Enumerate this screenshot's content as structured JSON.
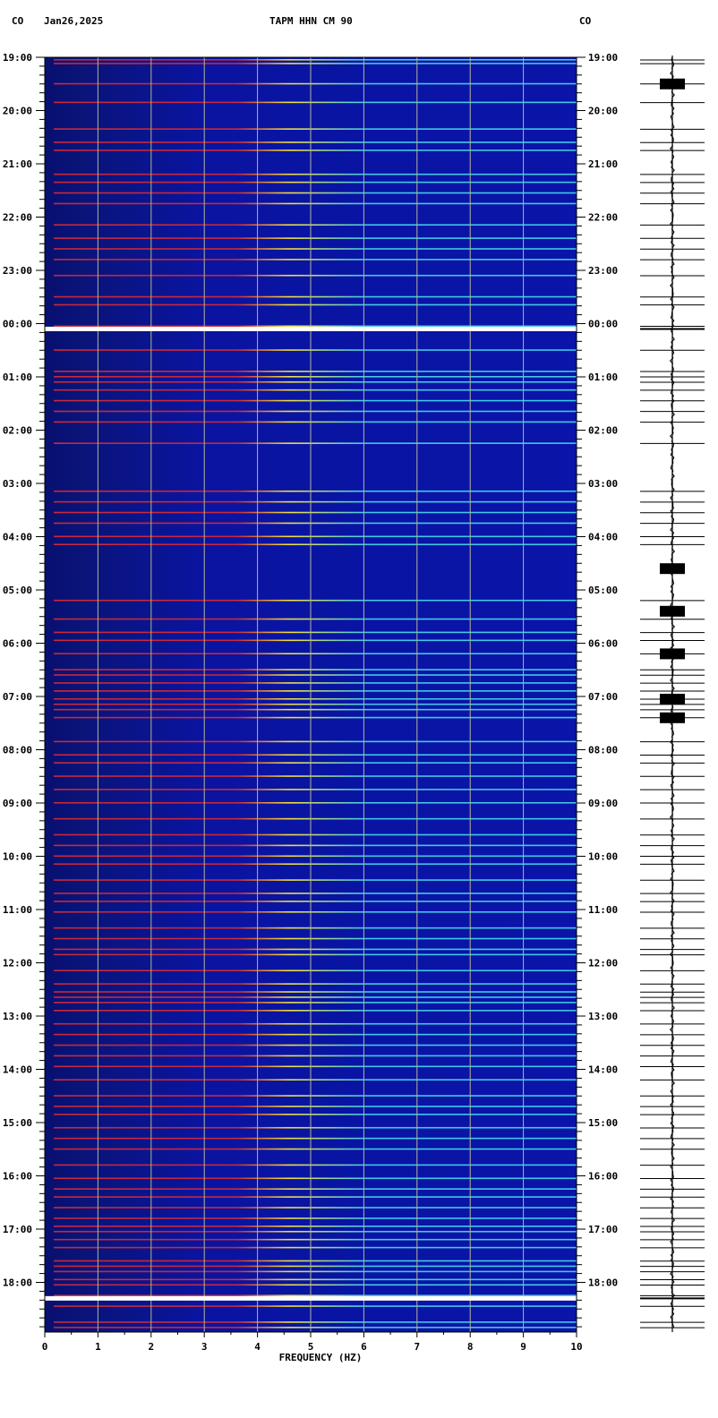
{
  "header": {
    "left_network": "CO",
    "date": "Jan26,2025",
    "station": "TAPM HHN CM 90",
    "right_network": "CO"
  },
  "chart_data": {
    "type": "heatmap",
    "title": "TAPM HHN CM 90",
    "xlabel": "FREQUENCY (HZ)",
    "ylabel": "",
    "xlim": [
      0,
      10
    ],
    "x_ticks": [
      "0",
      "1",
      "2",
      "3",
      "4",
      "5",
      "6",
      "7",
      "8",
      "9",
      "10"
    ],
    "y_ticks_left": [
      "19:00",
      "20:00",
      "21:00",
      "22:00",
      "23:00",
      "00:00",
      "01:00",
      "02:00",
      "03:00",
      "04:00",
      "05:00",
      "06:00",
      "07:00",
      "08:00",
      "09:00",
      "10:00",
      "11:00",
      "12:00",
      "13:00",
      "14:00",
      "15:00",
      "16:00",
      "17:00",
      "18:00"
    ],
    "y_ticks_right": [
      "19:00",
      "20:00",
      "21:00",
      "22:00",
      "23:00",
      "00:00",
      "01:00",
      "02:00",
      "03:00",
      "04:00",
      "05:00",
      "06:00",
      "07:00",
      "08:00",
      "09:00",
      "10:00",
      "11:00",
      "12:00",
      "13:00",
      "14:00",
      "15:00",
      "16:00",
      "17:00",
      "18:00"
    ],
    "grid": true,
    "colors": {
      "background": "#0a14a0",
      "low_freq_band": "#081070",
      "line_red": "#c8283c",
      "line_yellow": "#f0e040",
      "line_cyan": "#40c8e8",
      "grid": "#b4b496",
      "white_band": "#ffffff"
    },
    "event_lines_hours": [
      0.05,
      0.12,
      0.5,
      0.85,
      1.35,
      1.6,
      1.75,
      2.2,
      2.35,
      2.55,
      2.75,
      3.15,
      3.4,
      3.6,
      3.8,
      4.1,
      4.5,
      4.65,
      5.05,
      5.5,
      5.9,
      6.0,
      6.1,
      6.25,
      6.45,
      6.65,
      6.85,
      7.25,
      8.15,
      8.35,
      8.55,
      8.75,
      9.0,
      9.15,
      10.2,
      10.55,
      10.8,
      10.95,
      11.2,
      11.5,
      11.6,
      11.75,
      11.9,
      12.05,
      12.15,
      12.25,
      12.4,
      12.85,
      13.1,
      13.25,
      13.5,
      13.75,
      14.0,
      14.3,
      14.6,
      14.8,
      15.0,
      15.15,
      15.45,
      15.7,
      15.85,
      16.05,
      16.35,
      16.55,
      16.75,
      16.85,
      17.15,
      17.4,
      17.55,
      17.65,
      17.75,
      17.9,
      18.15,
      18.35,
      18.55,
      18.75,
      18.95,
      19.2,
      19.5,
      19.7,
      19.85,
      20.1,
      20.3,
      20.5,
      20.8,
      21.05,
      21.25,
      21.4,
      21.6,
      21.8,
      21.95,
      22.05,
      22.2,
      22.35,
      22.6,
      22.7,
      22.8,
      22.95,
      23.05,
      23.25,
      23.3,
      23.45,
      23.75,
      23.85
    ],
    "bright_bands_hours": [
      5.1,
      23.3
    ],
    "seismogram_events_hours": [
      0.5,
      9.6,
      10.4,
      11.2,
      12.05,
      12.4
    ]
  }
}
